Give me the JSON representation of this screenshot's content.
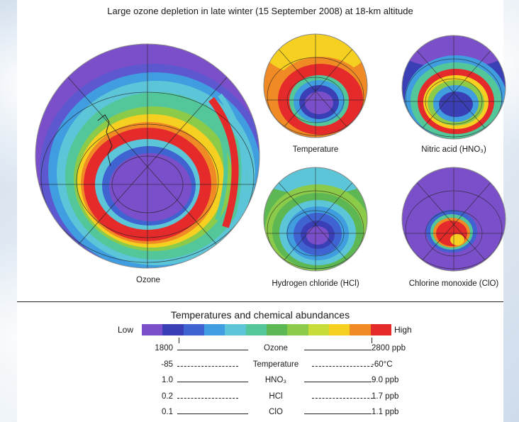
{
  "title": "Large ozone depletion in late winter (15 September 2008) at 18-km altitude",
  "globes": [
    {
      "name": "ozone",
      "label": "Ozone"
    },
    {
      "name": "temperature",
      "label": "Temperature"
    },
    {
      "name": "nitric-acid",
      "label": "Nitric acid (HNO₃)"
    },
    {
      "name": "hydrogen-chloride",
      "label": "Hydrogen chloride (HCl)"
    },
    {
      "name": "chlorine-monoxide",
      "label": "Chlorine monoxide (ClO)"
    }
  ],
  "legend": {
    "title": "Temperatures and chemical abundances",
    "low": "Low",
    "high": "High",
    "colors": [
      "#7b4fc9",
      "#3b3fb5",
      "#3f63d0",
      "#3f9de0",
      "#5cc6d8",
      "#53c79a",
      "#5db853",
      "#8ccb4a",
      "#c8dc3a",
      "#f5d020",
      "#f08a24",
      "#e42a2a"
    ],
    "rows": [
      {
        "low": "1800",
        "name": "Ozone",
        "high": "2800 ppb",
        "style": "solid"
      },
      {
        "low": "-85",
        "name": "Temperature",
        "high": "-60°C",
        "style": "dashed"
      },
      {
        "low": "1.0",
        "name": "HNO₃",
        "high": "9.0 ppb",
        "style": "solid"
      },
      {
        "low": "0.2",
        "name": "HCl",
        "high": "1.7 ppb",
        "style": "dashed"
      },
      {
        "low": "0.1",
        "name": "ClO",
        "high": "1.1 ppb",
        "style": "solid"
      }
    ]
  }
}
